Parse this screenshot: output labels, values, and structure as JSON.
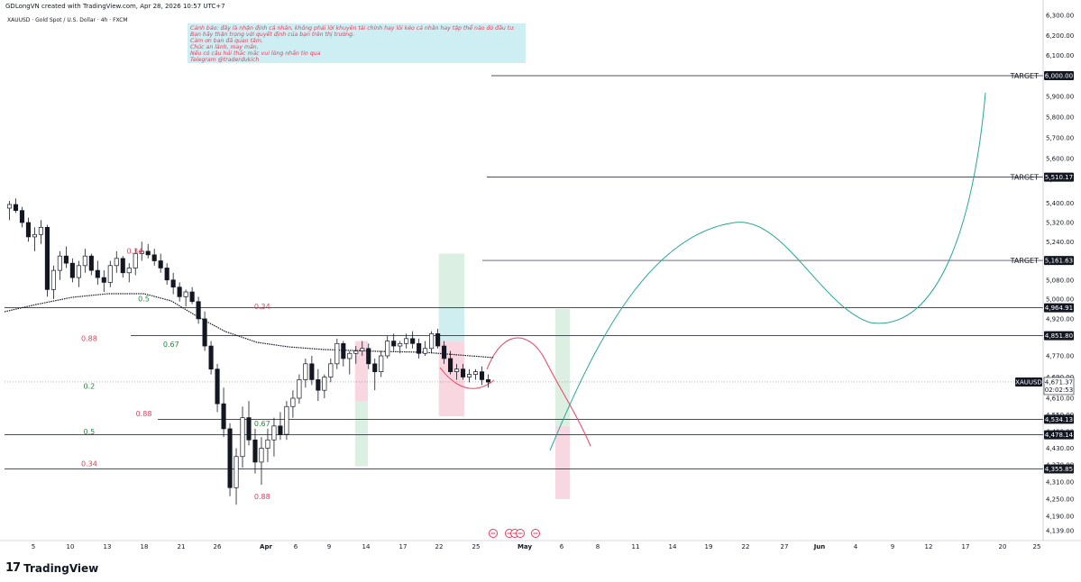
{
  "header": {
    "caption": "GDLongVN created with TradingView.com, Apr 28, 2026 10:57 UTC+7",
    "symbol_line": "XAUUSD · Gold Spot / U.S. Dollar · 4h · FXCM"
  },
  "note_lines": [
    "Cảnh báo: đây là nhận định cá nhân, không phải lời khuyên tài chính hay lôi kéo cá nhân hay tập thể nào đó đầu tư.",
    "Bạn hãy thận trọng với quyết định của bạn trên thị trường.",
    "Cảm ơn bạn đã quan tâm.",
    "Chúc an lành, may mắn.",
    "Nếu có câu hỏi thắc mắc vui lòng nhắn tin qua",
    "Telegram @traderdukich"
  ],
  "footer": {
    "brand": "TradingView",
    "logo_mark": "17"
  },
  "colors": {
    "candle": "#131722",
    "accent_green": "#26a69a",
    "accent_red": "#f23f64",
    "note_text": "#e0405a",
    "note_bg": "#cdeff4",
    "fib_green": "#1f8a3a",
    "fib_red": "#e0405a"
  },
  "chart_data": {
    "type": "line",
    "symbol": "XAUUSD",
    "ylim": [
      4120,
      6330
    ],
    "y_ticks": [
      4139.0,
      4190.0,
      4250.0,
      4310.0,
      4370.0,
      4430.0,
      4490.0,
      4550.0,
      4610.0,
      4690.0,
      4770.0,
      4850.0,
      4920.0,
      5000.0,
      5080.0,
      5160.0,
      5240.0,
      5320.0,
      5400.0,
      5500.0,
      5600.0,
      5700.0,
      5800.0,
      5900.0,
      6000.0,
      6100.0,
      6200.0,
      6300.0
    ],
    "y_tick_labels": [
      "4,139.00",
      "4,190.00",
      "4,250.00",
      "4,310.00",
      "4,370.00",
      "4,430.00",
      "4,490.00",
      "4,550.00",
      "4,610.00",
      "4,690.00",
      "4,770.00",
      "4,850.00",
      "4,920.00",
      "5,000.00",
      "5,080.00",
      "5,160.00",
      "5,240.00",
      "5,320.00",
      "5,400.00",
      "5,500.00",
      "5,600.00",
      "5,700.00",
      "5,800.00",
      "5,900.00",
      "6,000.00",
      "6,100.00",
      "6,200.00",
      "6,300.00"
    ],
    "x_tick_labels": [
      "5",
      "10",
      "13",
      "18",
      "21",
      "26",
      "Apr",
      "6",
      "9",
      "14",
      "17",
      "22",
      "25",
      "May",
      "6",
      "8",
      "11",
      "14",
      "19",
      "22",
      "27",
      "Jun",
      "4",
      "9",
      "12",
      "17",
      "20",
      "25"
    ],
    "price_labels": [
      {
        "label": "6,000.00",
        "price": 6000.0,
        "text": "TARGET"
      },
      {
        "label": "5,510.17",
        "price": 5510.17,
        "text": "TARGET"
      },
      {
        "label": "5,161.63",
        "price": 5161.63,
        "text": "TARGET"
      },
      {
        "label": "4,964.91",
        "price": 4964.91,
        "text": ""
      },
      {
        "label": "4,851.80",
        "price": 4851.8,
        "text": ""
      },
      {
        "label": "4,534.13",
        "price": 4534.13,
        "text": ""
      },
      {
        "label": "4,478.14",
        "price": 4478.14,
        "text": ""
      },
      {
        "label": "4,355.85",
        "price": 4355.85,
        "text": ""
      }
    ],
    "current_price": {
      "symbol": "XAUUSD",
      "price": 4671.37,
      "label": "4,671.37",
      "countdown": "02:02:53"
    },
    "fib_labels": [
      {
        "text": "0.34",
        "price": 5190,
        "color": "red",
        "day": 14
      },
      {
        "text": "0.5",
        "price": 4990,
        "color": "green",
        "day": 15
      },
      {
        "text": "0.88",
        "price": 4545,
        "color": "red",
        "day": 15
      },
      {
        "text": "0.34",
        "price": 4960,
        "color": "red",
        "day": 28
      },
      {
        "text": "0.67",
        "price": 4510,
        "color": "green",
        "day": 28
      },
      {
        "text": "0.88",
        "price": 4250,
        "color": "red",
        "day": 28
      },
      {
        "text": "0.88",
        "price": 4830,
        "color": "red",
        "day": 9
      },
      {
        "text": "0.5",
        "price": 4480,
        "color": "green",
        "day": 9
      },
      {
        "text": "0.34",
        "price": 4365,
        "color": "red",
        "day": 9
      },
      {
        "text": "0.2",
        "price": 4646,
        "color": "green",
        "day": 9
      },
      {
        "text": "0.67",
        "price": 4806,
        "color": "green",
        "day": 18
      }
    ],
    "candles_ohlc": [
      [
        5380,
        5410,
        5330,
        5395
      ],
      [
        5395,
        5420,
        5360,
        5370
      ],
      [
        5370,
        5385,
        5300,
        5320
      ],
      [
        5320,
        5340,
        5240,
        5260
      ],
      [
        5260,
        5300,
        5200,
        5270
      ],
      [
        5270,
        5330,
        5230,
        5300
      ],
      [
        5300,
        5310,
        5010,
        5040
      ],
      [
        5040,
        5140,
        5000,
        5120
      ],
      [
        5120,
        5200,
        5080,
        5180
      ],
      [
        5180,
        5220,
        5130,
        5150
      ],
      [
        5150,
        5170,
        5070,
        5090
      ],
      [
        5090,
        5160,
        5050,
        5140
      ],
      [
        5140,
        5210,
        5110,
        5180
      ],
      [
        5180,
        5190,
        5100,
        5120
      ],
      [
        5120,
        5160,
        5060,
        5090
      ],
      [
        5090,
        5120,
        5030,
        5070
      ],
      [
        5070,
        5160,
        5050,
        5140
      ],
      [
        5140,
        5200,
        5110,
        5170
      ],
      [
        5170,
        5180,
        5090,
        5110
      ],
      [
        5110,
        5150,
        5070,
        5130
      ],
      [
        5130,
        5210,
        5100,
        5190
      ],
      [
        5190,
        5240,
        5160,
        5200
      ],
      [
        5200,
        5230,
        5170,
        5185
      ],
      [
        5185,
        5210,
        5140,
        5160
      ],
      [
        5160,
        5190,
        5110,
        5130
      ],
      [
        5130,
        5150,
        5060,
        5080
      ],
      [
        5080,
        5110,
        5020,
        5050
      ],
      [
        5050,
        5070,
        4990,
        5010
      ],
      [
        5010,
        5040,
        4970,
        5030
      ],
      [
        5030,
        5050,
        4980,
        4990
      ],
      [
        4990,
        5010,
        4900,
        4920
      ],
      [
        4920,
        4950,
        4790,
        4810
      ],
      [
        4810,
        4830,
        4700,
        4720
      ],
      [
        4720,
        4740,
        4560,
        4590
      ],
      [
        4590,
        4650,
        4470,
        4500
      ],
      [
        4500,
        4520,
        4260,
        4290
      ],
      [
        4290,
        4430,
        4230,
        4400
      ],
      [
        4400,
        4580,
        4360,
        4540
      ],
      [
        4540,
        4600,
        4440,
        4460
      ],
      [
        4460,
        4500,
        4340,
        4380
      ],
      [
        4380,
        4470,
        4300,
        4430
      ],
      [
        4430,
        4500,
        4380,
        4460
      ],
      [
        4460,
        4540,
        4400,
        4510
      ],
      [
        4510,
        4560,
        4460,
        4480
      ],
      [
        4480,
        4600,
        4460,
        4580
      ],
      [
        4580,
        4640,
        4540,
        4610
      ],
      [
        4610,
        4700,
        4590,
        4680
      ],
      [
        4680,
        4760,
        4650,
        4740
      ],
      [
        4740,
        4770,
        4660,
        4680
      ],
      [
        4680,
        4720,
        4600,
        4640
      ],
      [
        4640,
        4700,
        4610,
        4690
      ],
      [
        4690,
        4760,
        4670,
        4740
      ],
      [
        4740,
        4840,
        4720,
        4820
      ],
      [
        4820,
        4830,
        4730,
        4760
      ],
      [
        4760,
        4790,
        4700,
        4780
      ],
      [
        4780,
        4810,
        4740,
        4790
      ],
      [
        4790,
        4830,
        4770,
        4800
      ],
      [
        4800,
        4820,
        4720,
        4740
      ],
      [
        4740,
        4760,
        4640,
        4710
      ],
      [
        4710,
        4790,
        4690,
        4770
      ],
      [
        4770,
        4850,
        4760,
        4830
      ],
      [
        4830,
        4860,
        4790,
        4810
      ],
      [
        4810,
        4830,
        4780,
        4820
      ],
      [
        4820,
        4860,
        4800,
        4840
      ],
      [
        4840,
        4870,
        4800,
        4820
      ],
      [
        4820,
        4840,
        4760,
        4780
      ],
      [
        4780,
        4830,
        4770,
        4800
      ],
      [
        4800,
        4870,
        4780,
        4860
      ],
      [
        4860,
        4880,
        4800,
        4810
      ],
      [
        4810,
        4830,
        4740,
        4760
      ],
      [
        4760,
        4790,
        4700,
        4710
      ],
      [
        4710,
        4740,
        4680,
        4720
      ],
      [
        4720,
        4740,
        4680,
        4690
      ],
      [
        4690,
        4720,
        4670,
        4700
      ],
      [
        4700,
        4720,
        4680,
        4710
      ],
      [
        4710,
        4730,
        4660,
        4680
      ],
      [
        4680,
        4700,
        4650,
        4671
      ]
    ]
  }
}
